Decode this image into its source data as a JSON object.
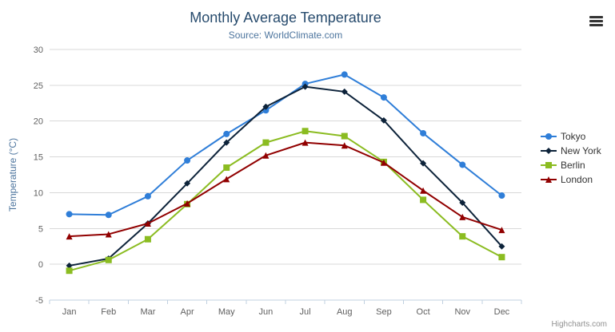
{
  "chart_data": {
    "type": "line",
    "title": "Monthly Average Temperature",
    "subtitle": "Source: WorldClimate.com",
    "ylabel": "Temperature (°C)",
    "xlabel": "",
    "ylim": [
      -5,
      30
    ],
    "ytick_step": 5,
    "grid": true,
    "legend_position": "right",
    "categories": [
      "Jan",
      "Feb",
      "Mar",
      "Apr",
      "May",
      "Jun",
      "Jul",
      "Aug",
      "Sep",
      "Oct",
      "Nov",
      "Dec"
    ],
    "series": [
      {
        "name": "Tokyo",
        "color": "#2f7ed8",
        "marker": "circle",
        "values": [
          7.0,
          6.9,
          9.5,
          14.5,
          18.2,
          21.5,
          25.2,
          26.5,
          23.3,
          18.3,
          13.9,
          9.6
        ]
      },
      {
        "name": "New York",
        "color": "#0d233a",
        "marker": "diamond",
        "values": [
          -0.2,
          0.8,
          5.7,
          11.3,
          17.0,
          22.0,
          24.8,
          24.1,
          20.1,
          14.1,
          8.6,
          2.5
        ]
      },
      {
        "name": "Berlin",
        "color": "#8bbc21",
        "marker": "square",
        "values": [
          -0.9,
          0.6,
          3.5,
          8.4,
          13.5,
          17.0,
          18.6,
          17.9,
          14.3,
          9.0,
          3.9,
          1.0
        ]
      },
      {
        "name": "London",
        "color": "#910000",
        "marker": "triangle",
        "values": [
          3.9,
          4.2,
          5.7,
          8.5,
          11.9,
          15.2,
          17.0,
          16.6,
          14.2,
          10.3,
          6.6,
          4.8
        ]
      }
    ],
    "colors": {
      "title_text": "#274b6d",
      "subtitle_text": "#4d759e",
      "axis_label": "#606060",
      "grid_line": "#d8d8d8",
      "axis_line": "#c0d0e0",
      "legend_text": "#333333",
      "credits_text": "#909090"
    }
  },
  "credits": {
    "label": "Highcharts.com"
  }
}
